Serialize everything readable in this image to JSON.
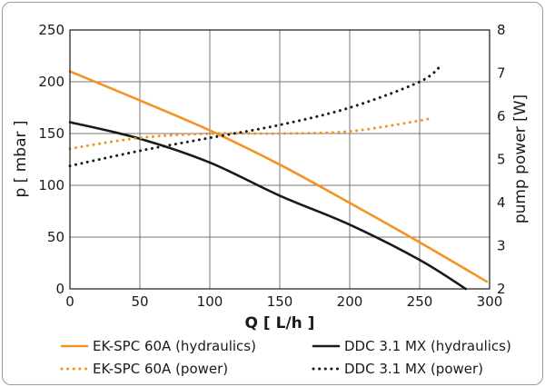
{
  "chart_data": {
    "type": "line",
    "xlabel": "Q [ L/h ]",
    "ylabel": "p [ mbar ]",
    "y2label": "pump power [W]",
    "xlim": [
      0,
      300
    ],
    "ylim": [
      0,
      250
    ],
    "y2lim": [
      2,
      8
    ],
    "x_ticks": [
      "0",
      "50",
      "100",
      "150",
      "200",
      "250",
      "300"
    ],
    "y_ticks": [
      "0",
      "50",
      "100",
      "150",
      "200",
      "250"
    ],
    "y2_ticks": [
      "2",
      "3",
      "4",
      "5",
      "6",
      "7",
      "8"
    ],
    "grid": true,
    "legend_position": "bottom",
    "colors": {
      "ek": "#f39322",
      "ddc": "#1a1a1a",
      "grid": "#777777"
    },
    "series": [
      {
        "name": "EK-SPC 60A (hydraulics)",
        "axis": "left",
        "style": "solid",
        "color": "#f39322",
        "x": [
          0,
          50,
          100,
          150,
          200,
          250,
          298
        ],
        "y": [
          210,
          182,
          153,
          120,
          83,
          45,
          7
        ]
      },
      {
        "name": "DDC 3.1 MX (hydraulics)",
        "axis": "left",
        "style": "solid",
        "color": "#1a1a1a",
        "x": [
          0,
          50,
          100,
          150,
          200,
          250,
          283
        ],
        "y": [
          161,
          145,
          122,
          90,
          62,
          28,
          0
        ]
      },
      {
        "name": "EK-SPC 60A (power)",
        "axis": "right",
        "style": "dotted",
        "color": "#f39322",
        "x": [
          0,
          50,
          100,
          150,
          200,
          250,
          256
        ],
        "y": [
          5.25,
          5.5,
          5.6,
          5.6,
          5.65,
          5.9,
          5.95
        ]
      },
      {
        "name": "DDC 3.1 MX (power)",
        "axis": "right",
        "style": "dotted",
        "color": "#1a1a1a",
        "x": [
          0,
          50,
          100,
          150,
          200,
          250,
          266
        ],
        "y": [
          4.85,
          5.2,
          5.5,
          5.8,
          6.2,
          6.8,
          7.2
        ]
      }
    ]
  }
}
